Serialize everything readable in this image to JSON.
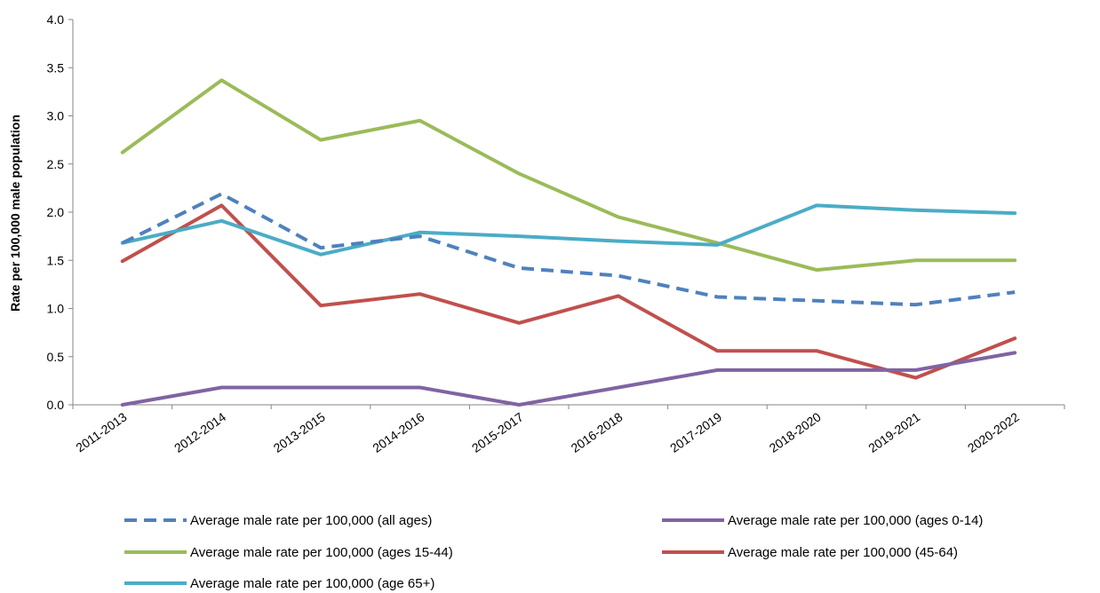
{
  "chart_data": {
    "type": "line",
    "title": "",
    "xlabel": "",
    "ylabel": "Rate per 100,000 male population",
    "ylim": [
      0,
      4.0
    ],
    "yticks": [
      "0.0",
      "0.5",
      "1.0",
      "1.5",
      "2.0",
      "2.5",
      "3.0",
      "3.5",
      "4.0"
    ],
    "categories": [
      "2011-2013",
      "2012-2014",
      "2013-2015",
      "2014-2016",
      "2015-2017",
      "2016-2018",
      "2017-2019",
      "2018-2020",
      "2019-2021",
      "2020-2022"
    ],
    "grid": false,
    "legend_position": "bottom",
    "series": [
      {
        "name": "Average male rate per 100,000 (all ages)",
        "color": "#4F81BD",
        "dashed": true,
        "values": [
          1.68,
          2.19,
          1.63,
          1.75,
          1.42,
          1.34,
          1.12,
          1.08,
          1.04,
          1.17
        ]
      },
      {
        "name": "Average male rate per 100,000 (ages 0-14)",
        "color": "#8064A2",
        "dashed": false,
        "values": [
          0.0,
          0.18,
          0.18,
          0.18,
          0.0,
          0.18,
          0.36,
          0.36,
          0.36,
          0.54
        ]
      },
      {
        "name": "Average male rate per 100,000 (ages 15-44)",
        "color": "#9BBB59",
        "dashed": false,
        "values": [
          2.62,
          3.37,
          2.75,
          2.95,
          2.4,
          1.95,
          1.68,
          1.4,
          1.5,
          1.5
        ]
      },
      {
        "name": "Average male rate per 100,000 (45-64)",
        "color": "#C0504D",
        "dashed": false,
        "values": [
          1.49,
          2.07,
          1.03,
          1.15,
          0.85,
          1.13,
          0.56,
          0.56,
          0.28,
          0.69
        ]
      },
      {
        "name": "Average male rate per 100,000 (age 65+)",
        "color": "#4BACC6",
        "dashed": false,
        "values": [
          1.68,
          1.91,
          1.56,
          1.79,
          1.75,
          1.7,
          1.66,
          2.07,
          2.02,
          1.99
        ]
      }
    ]
  }
}
